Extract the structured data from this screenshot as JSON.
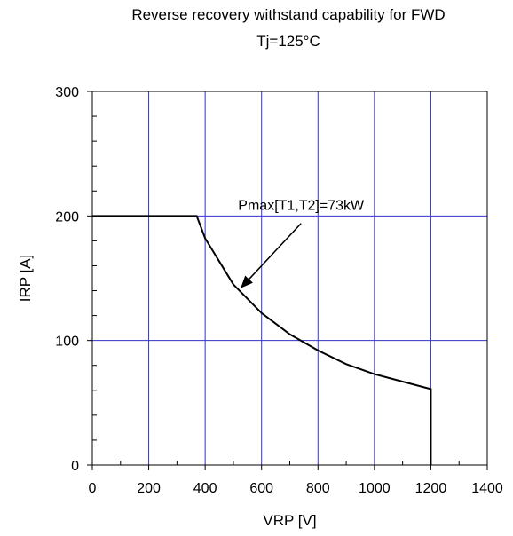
{
  "chart_data": {
    "type": "line",
    "title": "Reverse recovery withstand capability for FWD",
    "subtitle": "Tj=125°C",
    "xlabel": "VRP [V]",
    "ylabel": "IRP [A]",
    "xlim": [
      0,
      1400
    ],
    "ylim": [
      0,
      300
    ],
    "x_ticks": [
      0,
      200,
      400,
      600,
      800,
      1000,
      1200,
      1400
    ],
    "y_ticks": [
      0,
      100,
      200,
      300
    ],
    "grid": true,
    "colors": {
      "grid": "#3333cc",
      "line": "#000000",
      "frame": "#000000"
    },
    "series": [
      {
        "x": [
          0,
          370,
          400,
          500,
          600,
          700,
          800,
          900,
          1000,
          1100,
          1200,
          1200
        ],
        "y": [
          200,
          200,
          182,
          145,
          122,
          105,
          92,
          81,
          73,
          67,
          61,
          0
        ]
      }
    ],
    "annotations": [
      {
        "text": "Pmax[T1,T2]=73kW",
        "x": 740,
        "y": 205,
        "arrow_from": [
          740,
          194
        ],
        "arrow_to": [
          530,
          143
        ]
      }
    ]
  }
}
